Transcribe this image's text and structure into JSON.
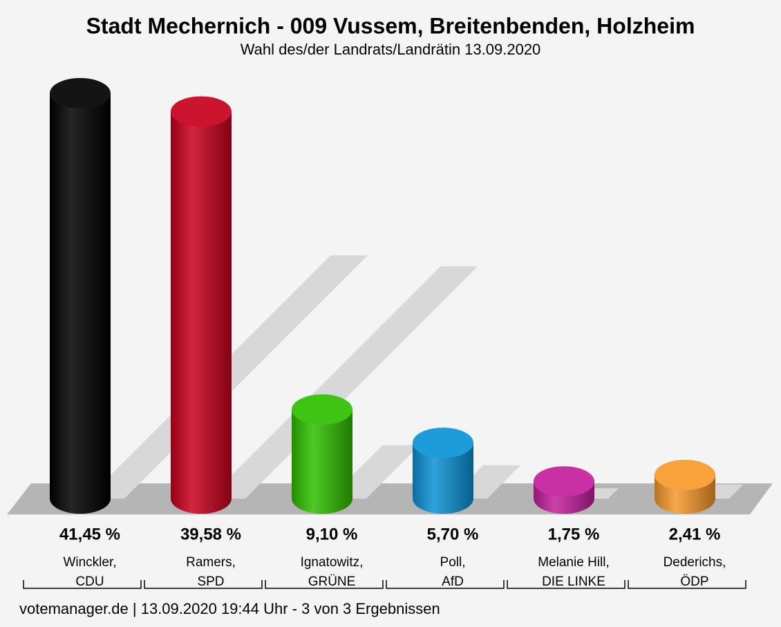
{
  "chart_data": {
    "type": "bar3d",
    "title": "Stadt Mechernich - 009 Vussem, Breitenbenden, Holzheim",
    "subtitle": "Wahl des/der Landrats/Landrätin 13.09.2020",
    "categories": [
      "Winckler,\nCDU",
      "Ramers,\nSPD",
      "Ignatowitz,\nGRÜNE",
      "Poll,\nAfD",
      "Melanie Hill,\nDIE LINKE",
      "Dederichs,\nÖDP"
    ],
    "values": [
      41.45,
      39.58,
      9.1,
      5.7,
      1.75,
      2.41
    ],
    "value_labels": [
      "41,45 %",
      "39,58 %",
      "9,10 %",
      "5,70 %",
      "1,75 %",
      "2,41 %"
    ],
    "colors": [
      "#000000",
      "#c8001c",
      "#2fbf00",
      "#0a93d6",
      "#c41e9c",
      "#f8992a"
    ],
    "footer": "votemanager.de | 13.09.2020 19:44 Uhr - 3 von 3 Ergebnissen"
  }
}
